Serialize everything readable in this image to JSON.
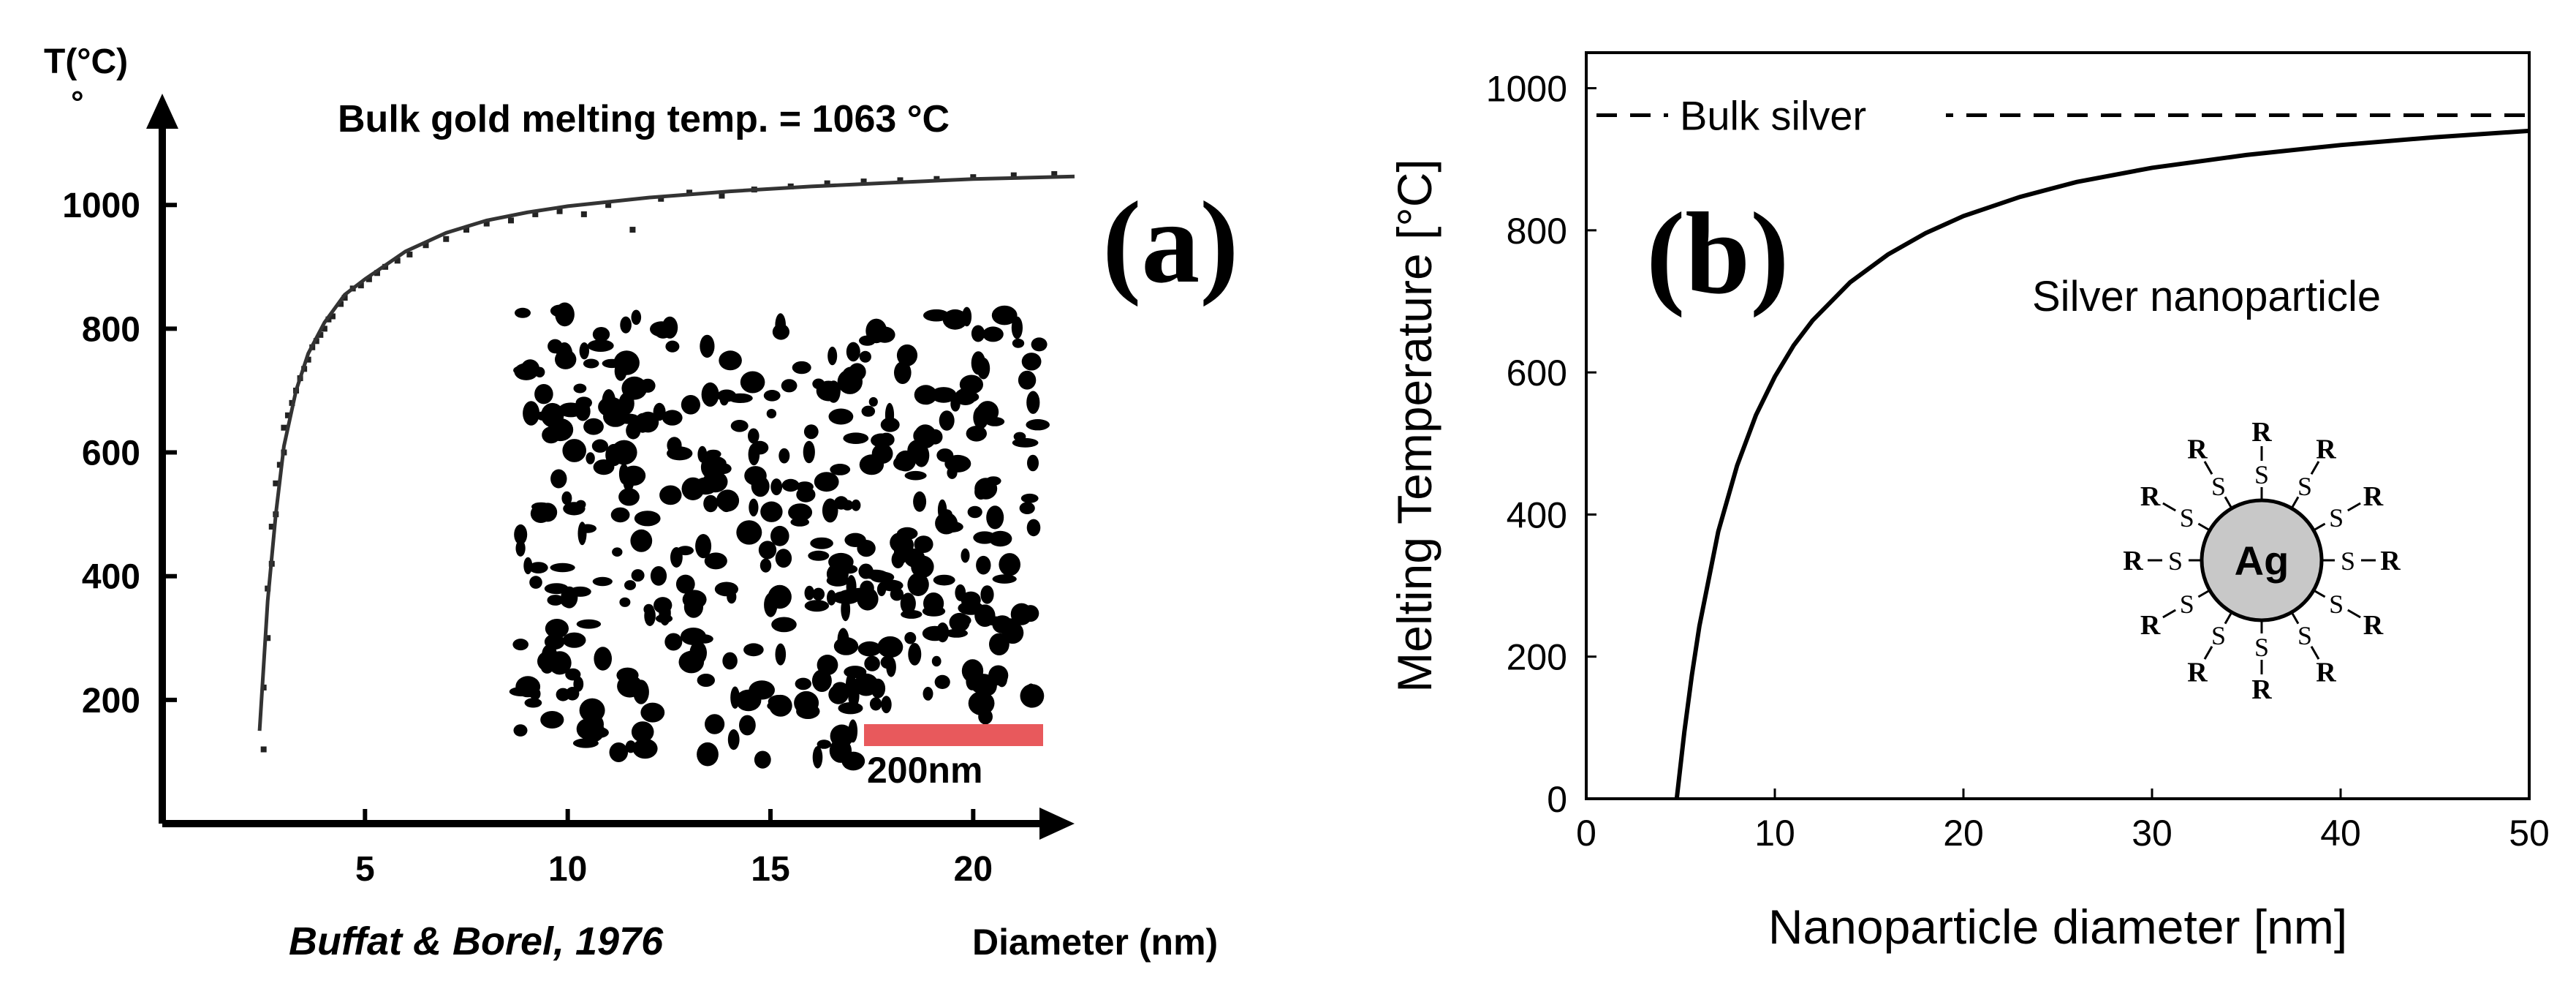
{
  "chart_data": [
    {
      "type": "scatter",
      "panel_label": "(a)",
      "title": "Bulk gold melting temp. = 1063 °C",
      "xlabel": "Diameter (nm)",
      "ylabel": "T(°C)",
      "ylabel_mark": "°",
      "xticks": [
        "5",
        "10",
        "15",
        "20"
      ],
      "yticks": [
        "200",
        "400",
        "600",
        "800",
        "1000"
      ],
      "xlim": [
        0,
        22.5
      ],
      "ylim": [
        0,
        1180
      ],
      "citation": "Buffat & Borel, 1976",
      "inset_scale_bar_label": "200nm",
      "fit_curve": {
        "x": [
          2.4,
          2.6,
          2.8,
          3.0,
          3.3,
          3.6,
          4.0,
          4.5,
          5.0,
          6.0,
          7.0,
          8.0,
          9.0,
          10.0,
          12.0,
          14.0,
          16.0,
          18.0,
          20.0,
          22.5
        ],
        "y": [
          150,
          360,
          500,
          610,
          700,
          760,
          810,
          855,
          880,
          925,
          955,
          975,
          988,
          998,
          1012,
          1022,
          1030,
          1036,
          1042,
          1046
        ]
      },
      "points": {
        "x": [
          2.5,
          2.5,
          2.6,
          2.6,
          2.7,
          2.7,
          2.8,
          2.8,
          2.9,
          3.0,
          3.0,
          3.1,
          3.2,
          3.3,
          3.4,
          3.5,
          3.6,
          3.7,
          3.8,
          3.9,
          4.0,
          4.1,
          4.2,
          4.4,
          4.5,
          4.7,
          4.9,
          5.1,
          5.3,
          5.5,
          5.8,
          6.1,
          6.5,
          7.0,
          7.5,
          8.0,
          8.6,
          9.2,
          9.8,
          10.4,
          11.0,
          11.6,
          12.3,
          13.0,
          13.8,
          14.6,
          15.5,
          16.4,
          17.3,
          18.2,
          19.1,
          20.0,
          21.0,
          22.0
        ],
        "y": [
          120,
          220,
          300,
          380,
          420,
          480,
          500,
          550,
          580,
          600,
          640,
          660,
          680,
          700,
          720,
          735,
          750,
          770,
          780,
          790,
          800,
          815,
          820,
          840,
          850,
          865,
          870,
          880,
          890,
          900,
          910,
          920,
          935,
          945,
          960,
          970,
          975,
          985,
          990,
          985,
          1000,
          960,
          1010,
          1020,
          1015,
          1025,
          1030,
          1035,
          1038,
          1040,
          1042,
          1045,
          1048,
          1050
        ]
      }
    },
    {
      "type": "line",
      "panel_label": "(b)",
      "xlabel": "Nanoparticle diameter [nm]",
      "ylabel": "Melting Temperature [°C]",
      "xticks": [
        "0",
        "10",
        "20",
        "30",
        "40",
        "50"
      ],
      "yticks": [
        "0",
        "200",
        "400",
        "600",
        "800",
        "1000"
      ],
      "xlim": [
        0,
        50
      ],
      "ylim": [
        0,
        1050
      ],
      "reference_line": {
        "label": "Bulk silver",
        "y": 962
      },
      "curve_label": "Silver nanoparticle",
      "series": [
        {
          "name": "Silver nanoparticle",
          "x": [
            4.8,
            5.2,
            5.6,
            6.0,
            7.0,
            8.0,
            9.0,
            10.0,
            11.0,
            12.0,
            14.0,
            16.0,
            18.0,
            20.0,
            23.0,
            26.0,
            30.0,
            35.0,
            40.0,
            45.0,
            50.0
          ],
          "y": [
            0,
            94,
            174,
            243,
            376,
            469,
            540,
            594,
            638,
            673,
            727,
            766,
            796,
            820,
            847,
            868,
            888,
            906,
            920,
            931,
            940
          ]
        }
      ],
      "schematic": {
        "core_label": "Ag",
        "ligand_atom": "S",
        "ligand_group": "R"
      }
    }
  ]
}
